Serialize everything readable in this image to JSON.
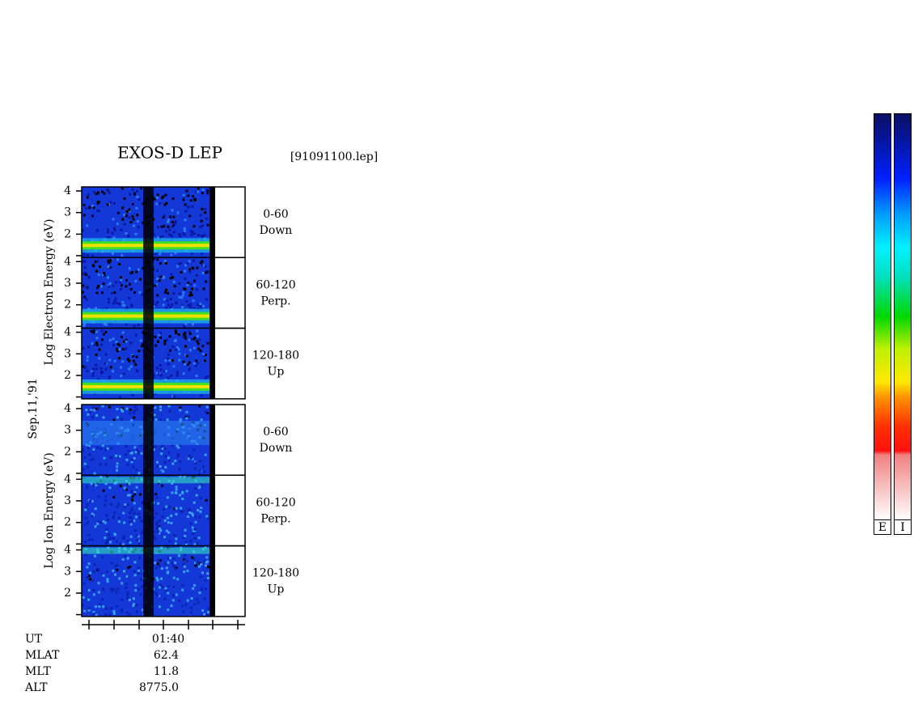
{
  "title": "EXOS-D LEP",
  "file": "[91091100.lep]",
  "date": "Sep.11,'91",
  "groups": [
    {
      "axis_label": "Log Electron Energy (eV)",
      "panels": [
        {
          "yticks": [
            4,
            3,
            2
          ],
          "angle": "0-60",
          "direction": "Down"
        },
        {
          "yticks": [
            4,
            3,
            2
          ],
          "angle": "60-120",
          "direction": "Perp."
        },
        {
          "yticks": [
            4,
            3,
            2
          ],
          "angle": "120-180",
          "direction": "Up"
        }
      ]
    },
    {
      "axis_label": "Log Ion Energy (eV)",
      "panels": [
        {
          "yticks": [
            4,
            3,
            2
          ],
          "angle": "0-60",
          "direction": "Down"
        },
        {
          "yticks": [
            4,
            3,
            2
          ],
          "angle": "60-120",
          "direction": "Perp."
        },
        {
          "yticks": [
            4,
            3,
            2
          ],
          "angle": "120-180",
          "direction": "Up"
        }
      ]
    }
  ],
  "x_tick_label": "01:40",
  "footer": [
    {
      "label": "UT",
      "value": "01:40"
    },
    {
      "label": "MLAT",
      "value": "62.4"
    },
    {
      "label": "MLT",
      "value": "11.8"
    },
    {
      "label": "ALT",
      "value": "8775.0"
    }
  ],
  "colorbars": [
    "E",
    "I"
  ]
}
